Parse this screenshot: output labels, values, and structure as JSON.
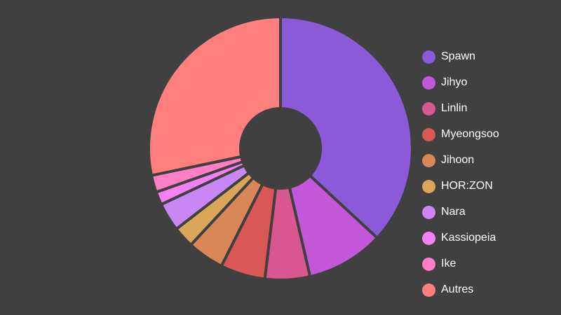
{
  "chart_data": {
    "type": "pie",
    "donut": true,
    "title": "",
    "legend_position": "right",
    "background_color": "#404040",
    "separator_color": "#404040",
    "slices": [
      {
        "label": "Spawn",
        "value": 36.9,
        "color": "#8b5ad9"
      },
      {
        "label": "Jihyo",
        "value": 9.5,
        "color": "#c257d9"
      },
      {
        "label": "Linlin",
        "value": 5.5,
        "color": "#d9578f"
      },
      {
        "label": "Myeongsoo",
        "value": 5.5,
        "color": "#d95757"
      },
      {
        "label": "Jihoon",
        "value": 4.5,
        "color": "#d98757"
      },
      {
        "label": "HOR:ZON",
        "value": 2.6,
        "color": "#d9a757"
      },
      {
        "label": "Nara",
        "value": 3.5,
        "color": "#c987f5"
      },
      {
        "label": "Kassiopeia",
        "value": 1.6,
        "color": "#f57ff5"
      },
      {
        "label": "Ike",
        "value": 2.1,
        "color": "#ff7fc7"
      },
      {
        "label": "Autres",
        "value": 28.3,
        "color": "#ff7f7f"
      }
    ]
  }
}
